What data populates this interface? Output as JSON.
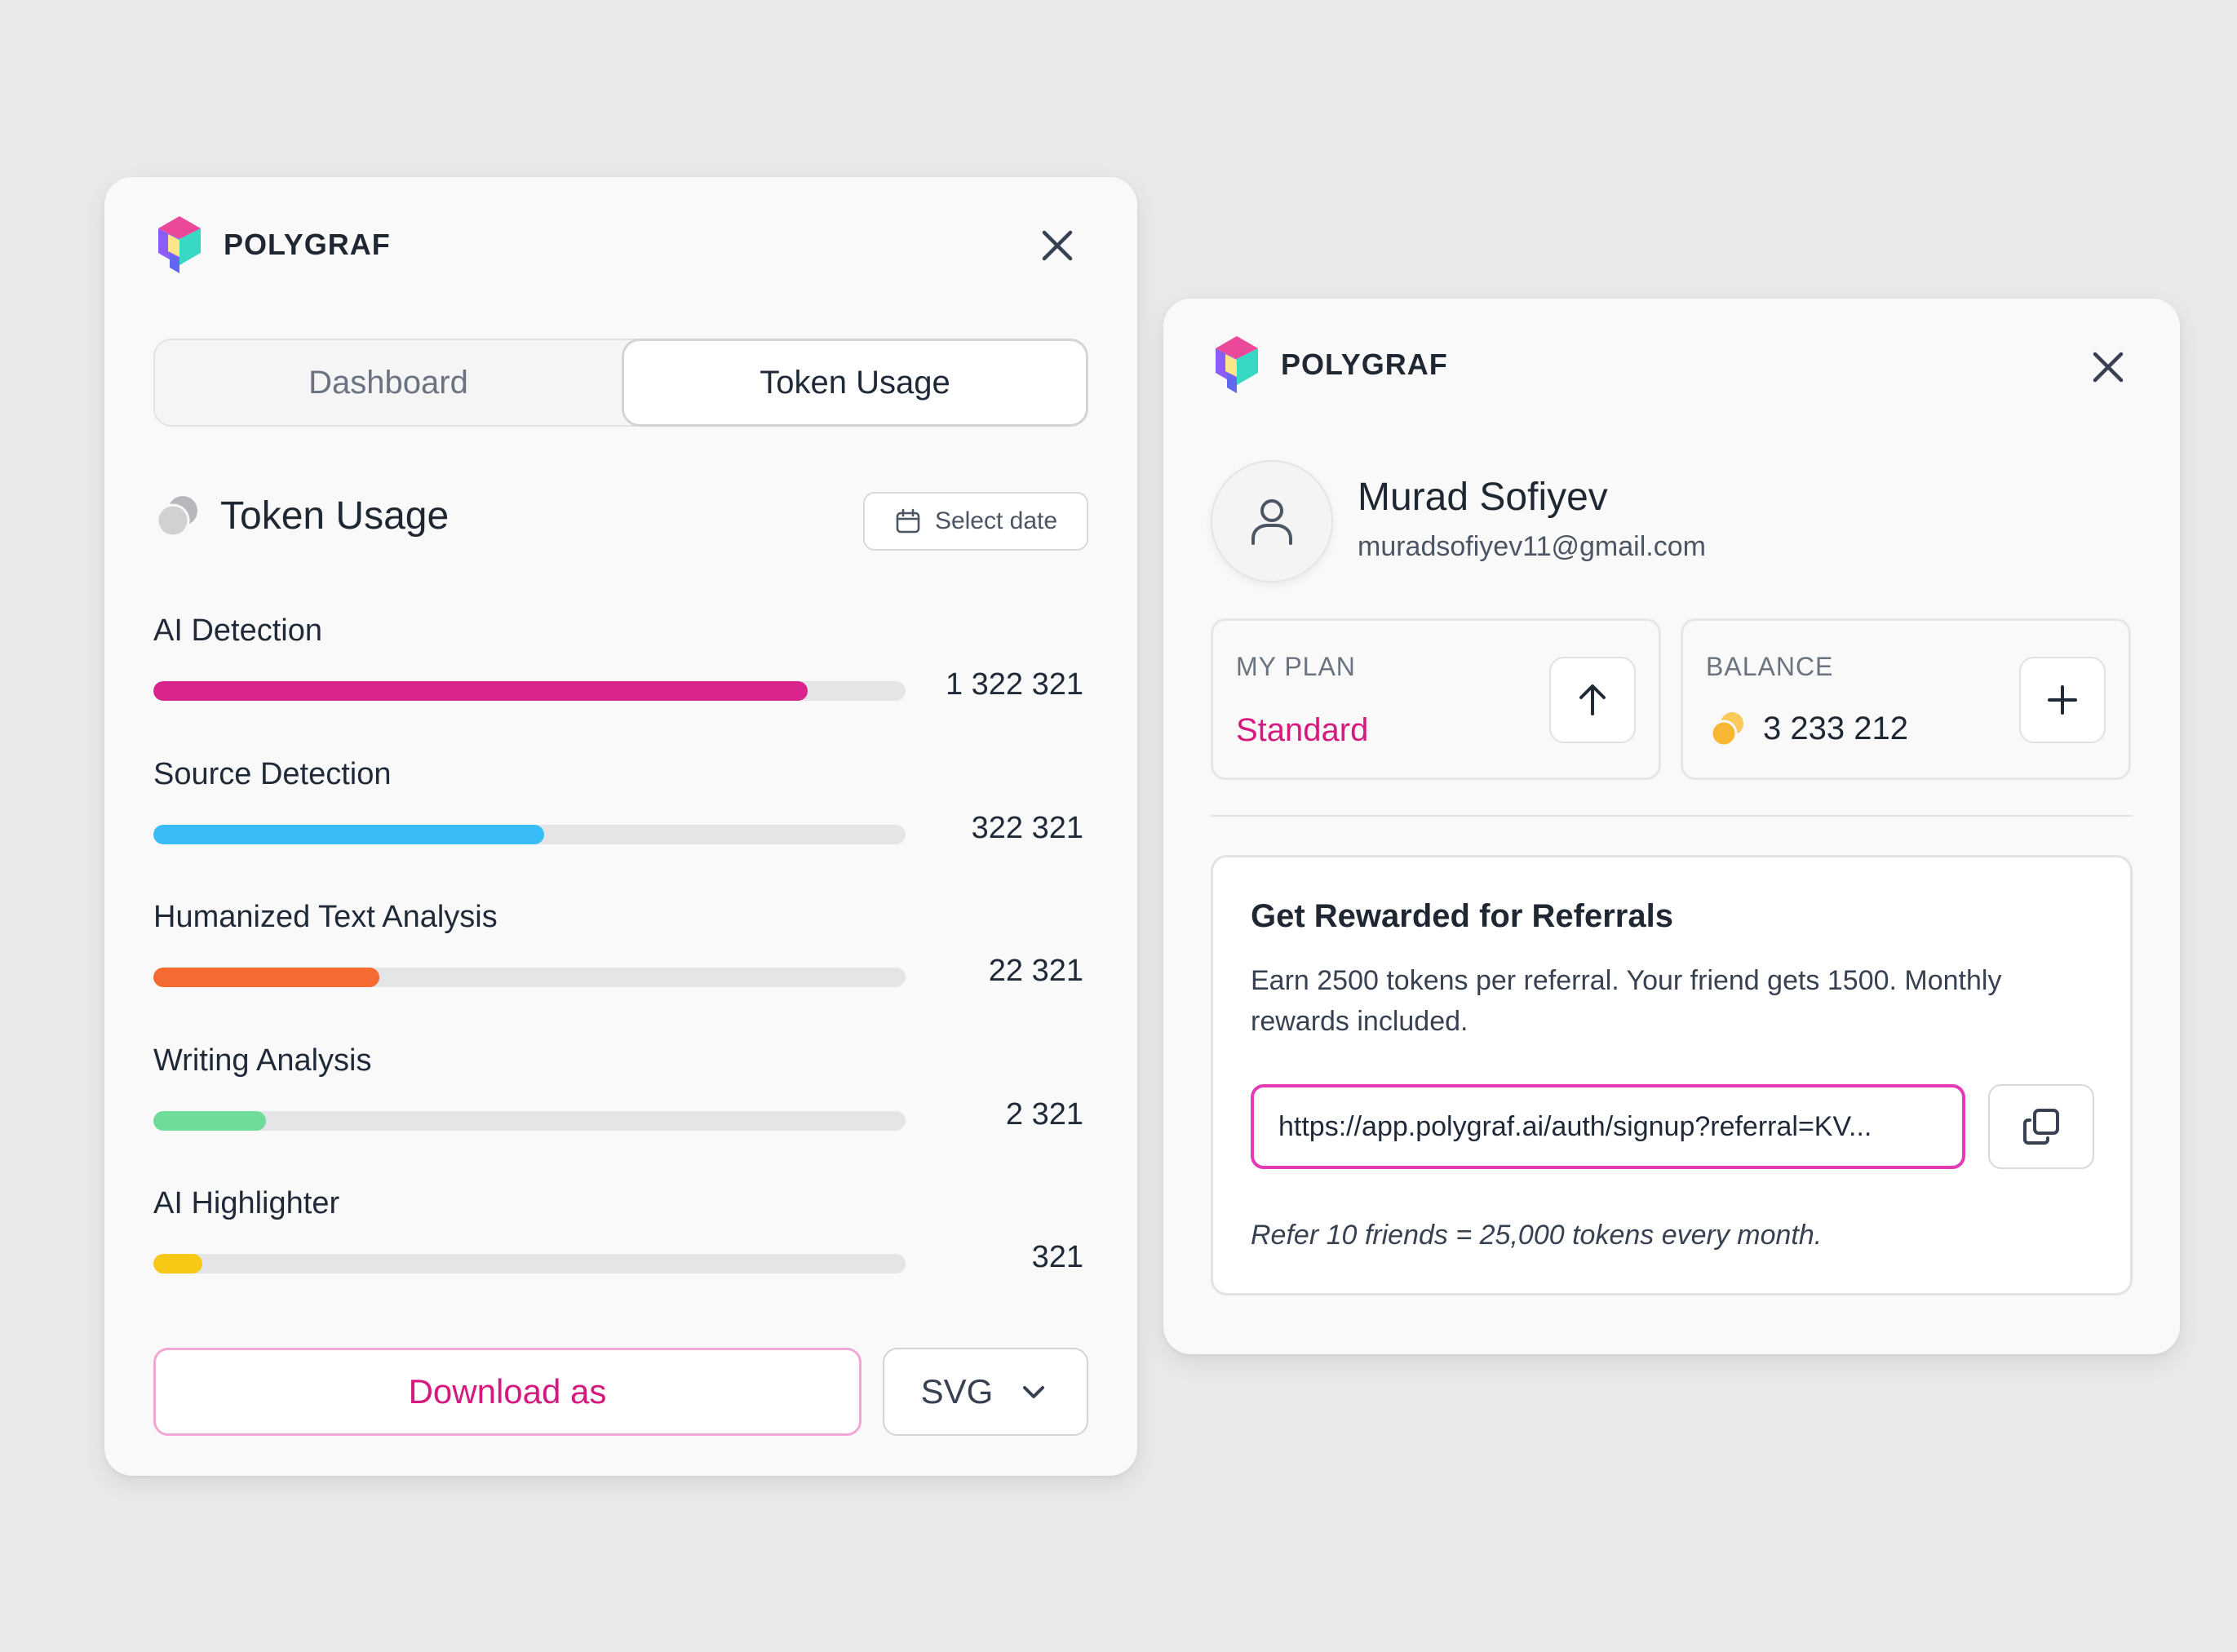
{
  "colors": {
    "accent": "#d6197e",
    "ai_detection": "#d9248e",
    "source_detection": "#38bdf8",
    "humanized_text": "#f46a30",
    "writing_analysis": "#6fdc9b",
    "ai_highlighter": "#f7c815"
  },
  "left_panel": {
    "brand": "POLYGRAF",
    "tabs": [
      {
        "label": "Dashboard",
        "active": false
      },
      {
        "label": "Token Usage",
        "active": true
      }
    ],
    "section_title": "Token Usage",
    "select_date_label": "Select date",
    "usage": [
      {
        "label": "AI Detection",
        "value": "1 322 321",
        "fill_fraction": 0.87,
        "color": "#d9248e"
      },
      {
        "label": "Source Detection",
        "value": "322 321",
        "fill_fraction": 0.52,
        "color": "#38bdf8"
      },
      {
        "label": "Humanized Text Analysis",
        "value": "22 321",
        "fill_fraction": 0.3,
        "color": "#f46a30"
      },
      {
        "label": "Writing Analysis",
        "value": "2 321",
        "fill_fraction": 0.15,
        "color": "#6fdc9b"
      },
      {
        "label": "AI Highlighter",
        "value": "321",
        "fill_fraction": 0.065,
        "color": "#f7c815"
      }
    ],
    "download_label": "Download as",
    "format_value": "SVG"
  },
  "right_panel": {
    "brand": "POLYGRAF",
    "user": {
      "name": "Murad Sofiyev",
      "email": "muradsofiyev11@gmail.com"
    },
    "plan": {
      "label": "MY PLAN",
      "value": "Standard"
    },
    "balance": {
      "label": "BALANCE",
      "value": "3 233 212"
    },
    "referral": {
      "title": "Get Rewarded for Referrals",
      "description": "Earn 2500 tokens per referral. Your friend gets 1500. Monthly rewards included.",
      "link": "https://app.polygraf.ai/auth/signup?referral=KV...",
      "note": "Refer 10 friends = 25,000 tokens every month."
    }
  }
}
